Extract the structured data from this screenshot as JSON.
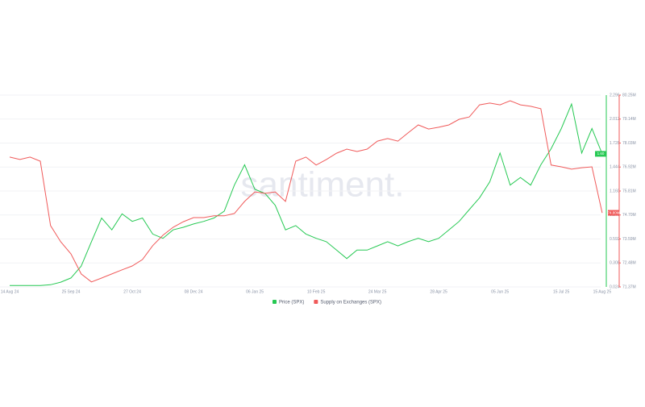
{
  "chart_data": {
    "type": "line",
    "watermark": "santiment.",
    "categories": [
      "14 Aug 24",
      null,
      null,
      null,
      null,
      null,
      "25 Sep 24",
      null,
      null,
      null,
      null,
      null,
      "27 Oct 24",
      null,
      null,
      null,
      null,
      null,
      "08 Dec 24",
      null,
      null,
      null,
      null,
      null,
      "06 Jan 25",
      null,
      null,
      null,
      null,
      null,
      "10 Feb 25",
      null,
      null,
      null,
      null,
      null,
      "24 Mar 25",
      null,
      null,
      null,
      null,
      null,
      "28 Apr 25",
      null,
      null,
      null,
      null,
      null,
      "05 Jun 25",
      null,
      null,
      null,
      null,
      null,
      "15 Jul 25",
      null,
      null,
      null,
      "15 Aug 25"
    ],
    "series": [
      {
        "name": "Price (SPX)",
        "color": "#26c953",
        "axis": "y",
        "values": [
          0.04,
          0.04,
          0.04,
          0.04,
          0.05,
          0.08,
          0.13,
          0.27,
          0.56,
          0.84,
          0.7,
          0.89,
          0.8,
          0.84,
          0.65,
          0.6,
          0.7,
          0.73,
          0.77,
          0.8,
          0.84,
          0.92,
          1.23,
          1.47,
          1.18,
          1.13,
          0.99,
          0.7,
          0.75,
          0.65,
          0.6,
          0.56,
          0.46,
          0.36,
          0.46,
          0.46,
          0.51,
          0.56,
          0.51,
          0.56,
          0.6,
          0.56,
          0.6,
          0.7,
          0.8,
          0.94,
          1.08,
          1.27,
          1.61,
          1.23,
          1.32,
          1.23,
          1.47,
          1.66,
          1.9,
          2.19,
          1.61,
          1.9,
          1.6
        ],
        "value_labels": [
          null,
          null,
          null,
          null,
          null,
          null,
          null,
          null,
          null,
          null,
          null,
          null,
          null,
          null,
          null,
          null,
          null,
          null,
          null,
          null,
          null,
          null,
          null,
          null,
          null,
          null,
          null,
          null,
          null,
          null,
          null,
          null,
          null,
          null,
          null,
          null,
          null,
          null,
          null,
          null,
          null,
          null,
          null,
          null,
          null,
          null,
          null,
          null,
          null,
          null,
          null,
          null,
          null,
          null,
          null,
          null,
          null,
          null,
          "1.60"
        ]
      },
      {
        "name": "Supply on Exchanges (SPX)",
        "color": "#f05a5a",
        "axis": "y2",
        "values": [
          77380000,
          77270000,
          77380000,
          77190000,
          74210000,
          73460000,
          72900000,
          71970000,
          71600000,
          71780000,
          71970000,
          72160000,
          72340000,
          72640000,
          73280000,
          73760000,
          74130000,
          74390000,
          74580000,
          74580000,
          74660000,
          74660000,
          74770000,
          75330000,
          75770000,
          75700000,
          75770000,
          75330000,
          77190000,
          77380000,
          77010000,
          77270000,
          77560000,
          77750000,
          77640000,
          77750000,
          78120000,
          78240000,
          78120000,
          78500000,
          78870000,
          78680000,
          78760000,
          78870000,
          79130000,
          79240000,
          79800000,
          79880000,
          79800000,
          79990000,
          79800000,
          79730000,
          79620000,
          77010000,
          76930000,
          76820000,
          76890000,
          76930000,
          74800000
        ],
        "value_labels": [
          null,
          null,
          null,
          null,
          null,
          null,
          null,
          null,
          null,
          null,
          null,
          null,
          null,
          null,
          null,
          null,
          null,
          null,
          null,
          null,
          null,
          null,
          null,
          null,
          null,
          null,
          null,
          null,
          null,
          null,
          null,
          null,
          null,
          null,
          null,
          null,
          null,
          null,
          null,
          null,
          null,
          null,
          null,
          null,
          null,
          null,
          null,
          null,
          null,
          null,
          null,
          null,
          null,
          null,
          null,
          null,
          null,
          null,
          "74.80M"
        ]
      }
    ],
    "ylim": [
      0.024,
      2.296
    ],
    "yticks": [
      0.024,
      0.308,
      0.592,
      0.876,
      {
        "value": 1.16,
        "label": "1.160"
      },
      1.444,
      1.728,
      2.012,
      2.296
    ],
    "y2lim": [
      71370000,
      80250000
    ],
    "y2ticks": [
      {
        "value": 71370000,
        "label": "71.37M"
      },
      {
        "value": 72480000,
        "label": "72.48M"
      },
      {
        "value": 73590000,
        "label": "73.59M"
      },
      {
        "value": 74700000,
        "label": "74.70M"
      },
      {
        "value": 75810000,
        "label": "75.81M"
      },
      {
        "value": 76920000,
        "label": "76.92M"
      },
      {
        "value": 78030000,
        "label": "78.03M"
      },
      {
        "value": 79140000,
        "label": "79.14M"
      },
      {
        "value": 80250000,
        "label": "80.25M"
      }
    ],
    "grid": true
  }
}
